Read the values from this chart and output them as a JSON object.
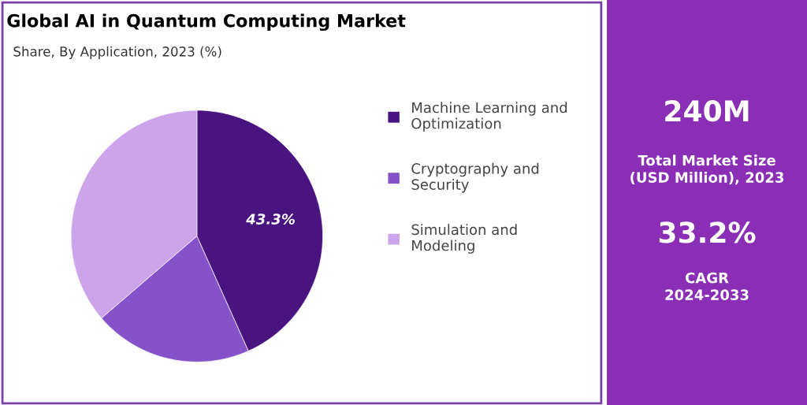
{
  "chart_data": [
    {
      "type": "pie",
      "title": "Global AI in Quantum Computing Market",
      "subtitle": "Share, By Application, 2023 (%)",
      "categories": [
        "Machine Learning and Optimization",
        "Cryptography and Security",
        "Simulation and Modeling"
      ],
      "values": [
        43.3,
        20.4,
        36.3
      ],
      "colors": [
        "#4a1480",
        "#8652c9",
        "#cda4ea"
      ],
      "value_labels": [
        "43.3%",
        null,
        null
      ],
      "legend": "right"
    },
    {
      "type": "other",
      "annotations": [
        "240M",
        "Total Market Size\n(USD Million), 2023",
        "33.2%",
        "CAGR\n2024-2033"
      ]
    }
  ]
}
